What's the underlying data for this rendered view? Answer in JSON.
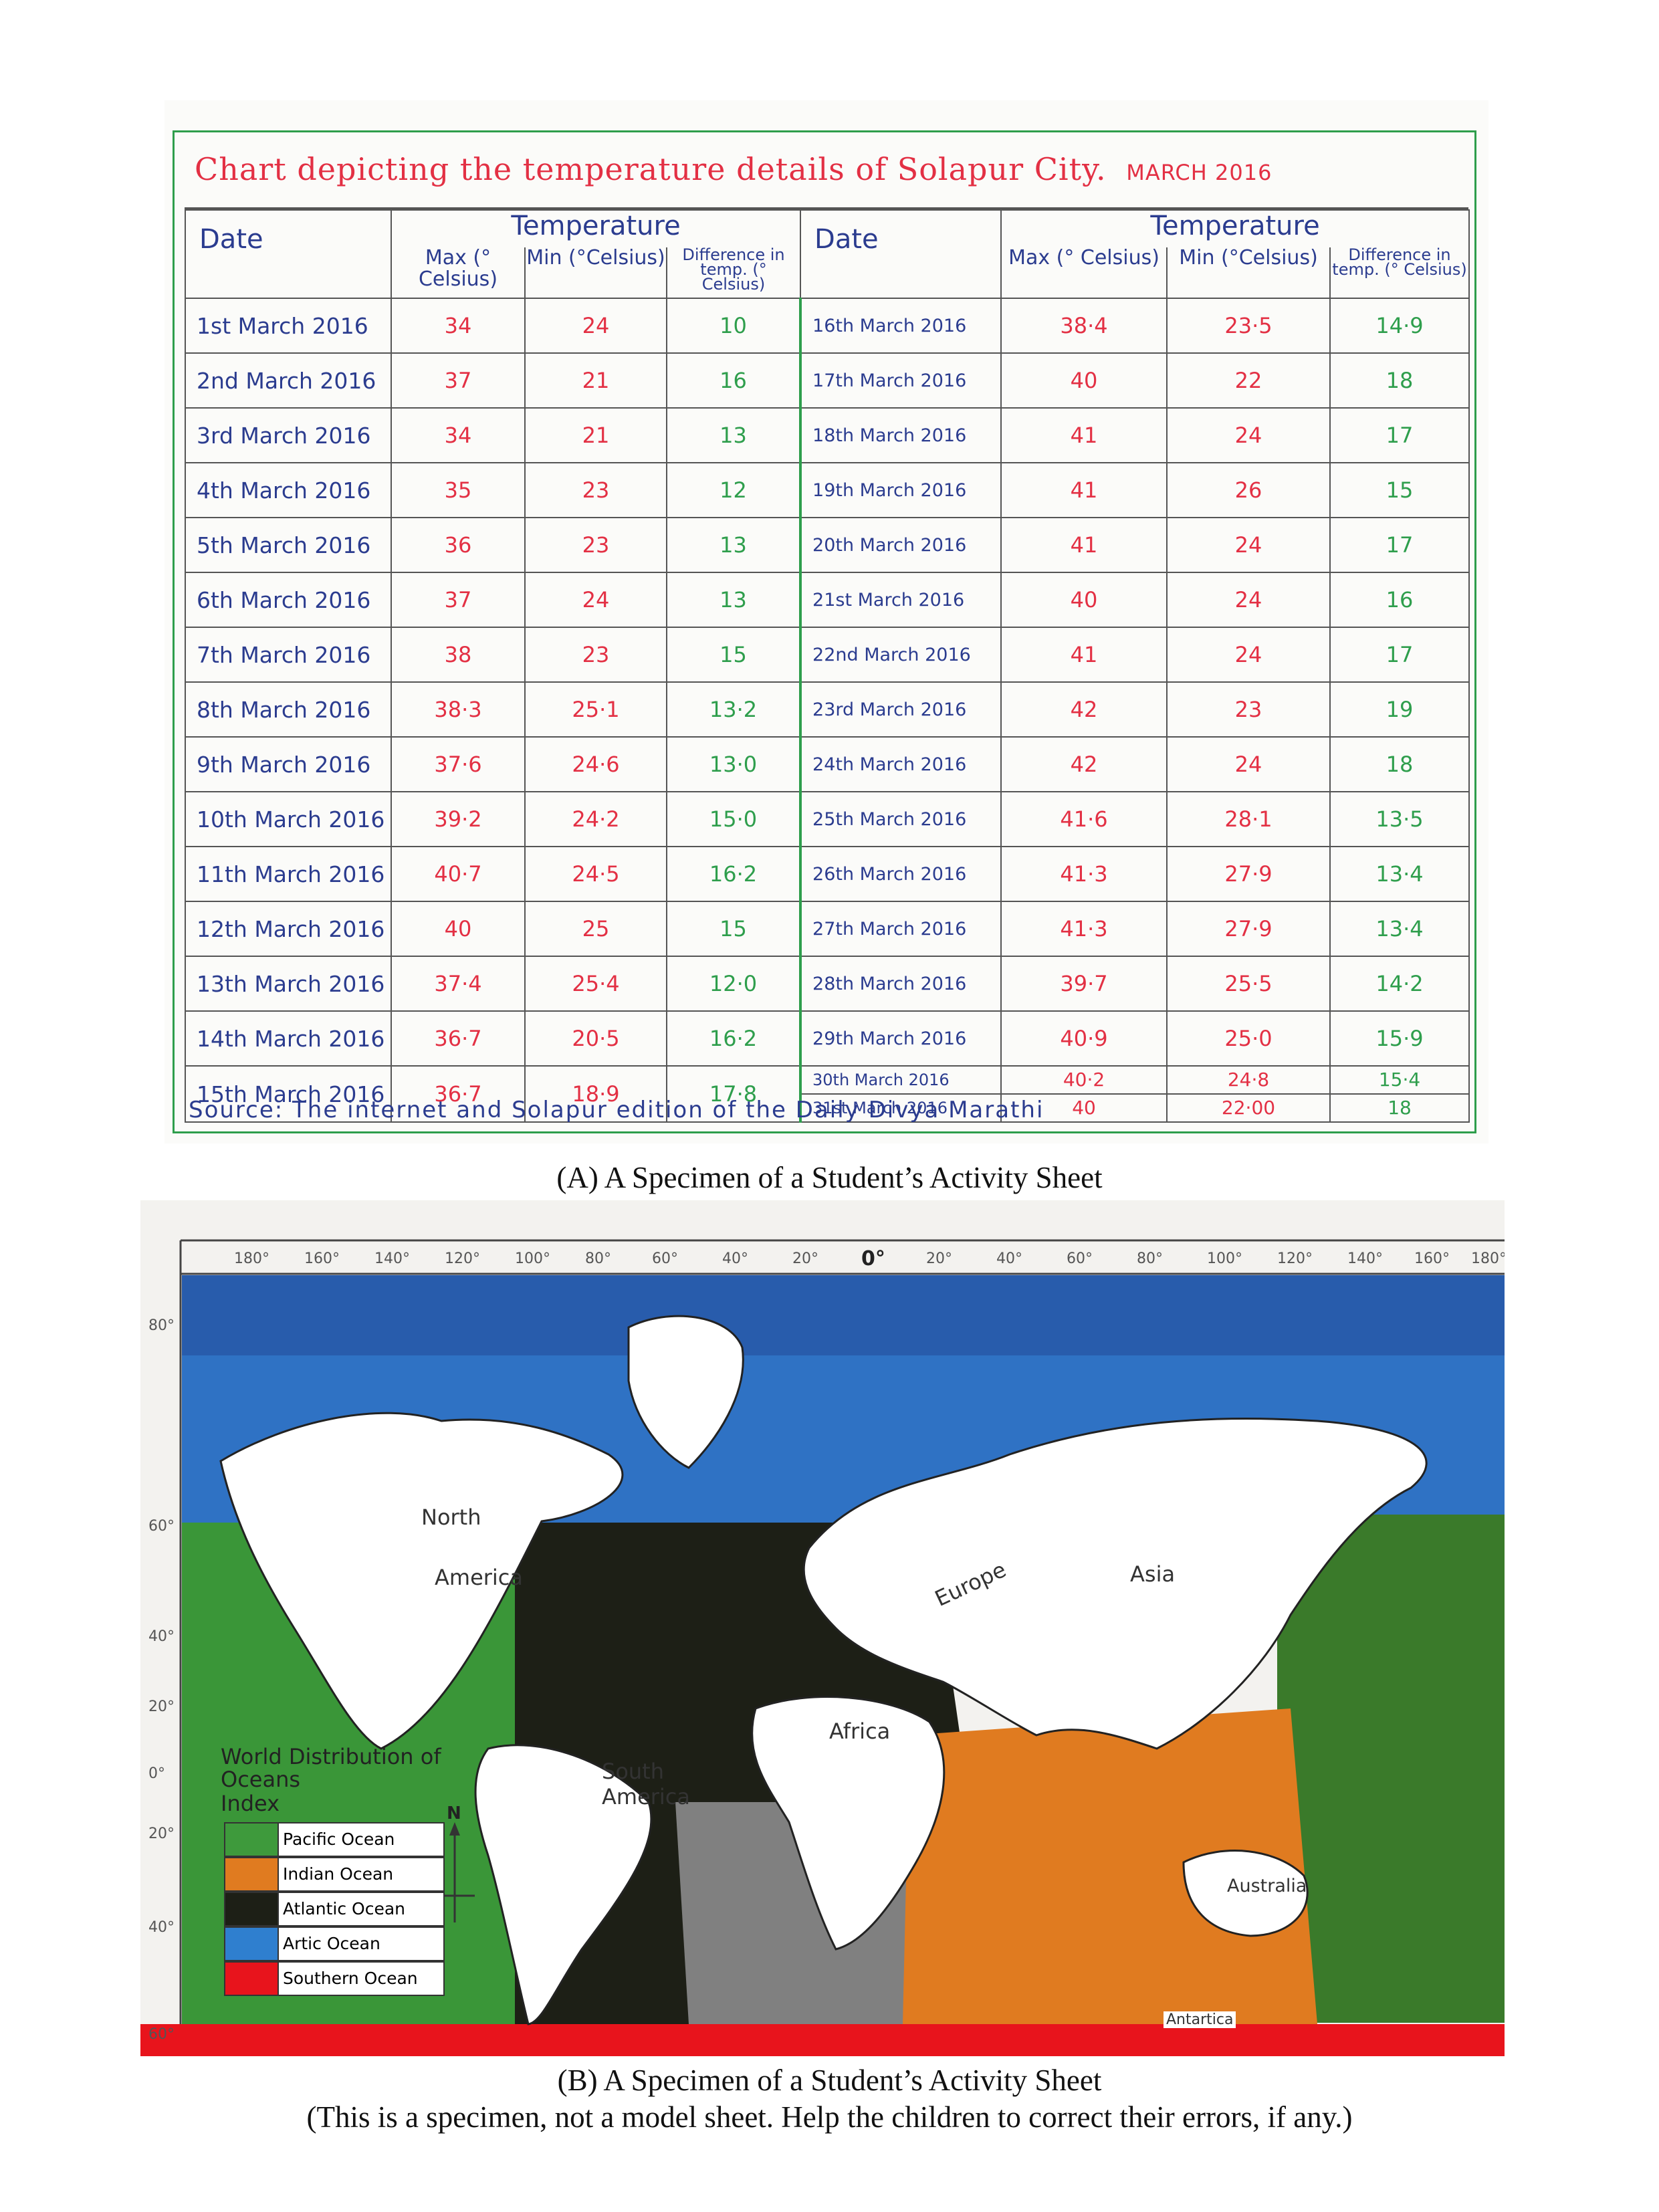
{
  "sheet_a": {
    "title": "Chart depicting the temperature details of Solapur City.",
    "title_month": "MARCH 2016",
    "headers": {
      "date": "Date",
      "temperature": "Temperature",
      "max": "Max (° Celsius)",
      "min": "Min (°Celsius)",
      "diff": "Difference in temp. (° Celsius)"
    },
    "rows_left": [
      {
        "date": "1st March 2016",
        "max": "34",
        "min": "24",
        "diff": "10"
      },
      {
        "date": "2nd March 2016",
        "max": "37",
        "min": "21",
        "diff": "16"
      },
      {
        "date": "3rd March 2016",
        "max": "34",
        "min": "21",
        "diff": "13"
      },
      {
        "date": "4th March 2016",
        "max": "35",
        "min": "23",
        "diff": "12"
      },
      {
        "date": "5th March 2016",
        "max": "36",
        "min": "23",
        "diff": "13"
      },
      {
        "date": "6th March 2016",
        "max": "37",
        "min": "24",
        "diff": "13"
      },
      {
        "date": "7th March 2016",
        "max": "38",
        "min": "23",
        "diff": "15"
      },
      {
        "date": "8th March 2016",
        "max": "38·3",
        "min": "25·1",
        "diff": "13·2"
      },
      {
        "date": "9th March 2016",
        "max": "37·6",
        "min": "24·6",
        "diff": "13·0"
      },
      {
        "date": "10th March 2016",
        "max": "39·2",
        "min": "24·2",
        "diff": "15·0"
      },
      {
        "date": "11th March 2016",
        "max": "40·7",
        "min": "24·5",
        "diff": "16·2"
      },
      {
        "date": "12th March 2016",
        "max": "40",
        "min": "25",
        "diff": "15"
      },
      {
        "date": "13th March 2016",
        "max": "37·4",
        "min": "25·4",
        "diff": "12·0"
      },
      {
        "date": "14th March 2016",
        "max": "36·7",
        "min": "20·5",
        "diff": "16·2"
      },
      {
        "date": "15th March 2016",
        "max": "36·7",
        "min": "18·9",
        "diff": "17·8"
      }
    ],
    "rows_right": [
      {
        "date": "16th March 2016",
        "max": "38·4",
        "min": "23·5",
        "diff": "14·9"
      },
      {
        "date": "17th March 2016",
        "max": "40",
        "min": "22",
        "diff": "18"
      },
      {
        "date": "18th March 2016",
        "max": "41",
        "min": "24",
        "diff": "17"
      },
      {
        "date": "19th March 2016",
        "max": "41",
        "min": "26",
        "diff": "15"
      },
      {
        "date": "20th March 2016",
        "max": "41",
        "min": "24",
        "diff": "17"
      },
      {
        "date": "21st March 2016",
        "max": "40",
        "min": "24",
        "diff": "16"
      },
      {
        "date": "22nd March 2016",
        "max": "41",
        "min": "24",
        "diff": "17"
      },
      {
        "date": "23rd March 2016",
        "max": "42",
        "min": "23",
        "diff": "19"
      },
      {
        "date": "24th March 2016",
        "max": "42",
        "min": "24",
        "diff": "18"
      },
      {
        "date": "25th March 2016",
        "max": "41·6",
        "min": "28·1",
        "diff": "13·5"
      },
      {
        "date": "26th March 2016",
        "max": "41·3",
        "min": "27·9",
        "diff": "13·4"
      },
      {
        "date": "27th March 2016",
        "max": "41·3",
        "min": "27·9",
        "diff": "13·4"
      },
      {
        "date": "28th March 2016",
        "max": "39·7",
        "min": "25·5",
        "diff": "14·2"
      },
      {
        "date": "29th March 2016",
        "max": "40·9",
        "min": "25·0",
        "diff": "15·9"
      },
      {
        "date": "30th March 2016",
        "max": "40·2",
        "min": "24·8",
        "diff": "15·4"
      },
      {
        "date": "31st March 2016",
        "max": "40",
        "min": "22·00",
        "diff": "18"
      }
    ],
    "source": "Source: The internet and Solapur edition of the Daily Divya Marathi",
    "caption": "(A) A Specimen of a Student’s Activity Sheet"
  },
  "sheet_b": {
    "longitudes": [
      "180°",
      "160°",
      "140°",
      "120°",
      "100°",
      "80°",
      "60°",
      "40°",
      "20°",
      "0°",
      "20°",
      "40°",
      "60°",
      "80°",
      "100°",
      "120°",
      "140°",
      "160°",
      "180°"
    ],
    "latitudes": [
      "80°",
      "60°",
      "40°",
      "20°",
      "0°",
      "20°",
      "40°",
      "60°"
    ],
    "continents": {
      "north": "North",
      "america": "America",
      "europe": "Europe",
      "asia": "Asia",
      "africa": "Africa",
      "south_america": "South America",
      "australia": "Australia",
      "antarctica": "Antartica"
    },
    "legend_title": "World Distribution of Oceans",
    "legend_index": "Index",
    "north_arrow": "N",
    "legend": [
      {
        "label": "Pacific Ocean",
        "color": "#3e9a3c"
      },
      {
        "label": "Indian Ocean",
        "color": "#e07b20"
      },
      {
        "label": "Atlantic Ocean",
        "color": "#1d1f16"
      },
      {
        "label": "Artic Ocean",
        "color": "#2f7fcf"
      },
      {
        "label": "Southern Ocean",
        "color": "#e8141c"
      }
    ],
    "caption": "(B) A Specimen of a Student’s Activity Sheet",
    "note": "(This is a specimen, not a model sheet. Help the children to correct their errors, if any.)"
  }
}
